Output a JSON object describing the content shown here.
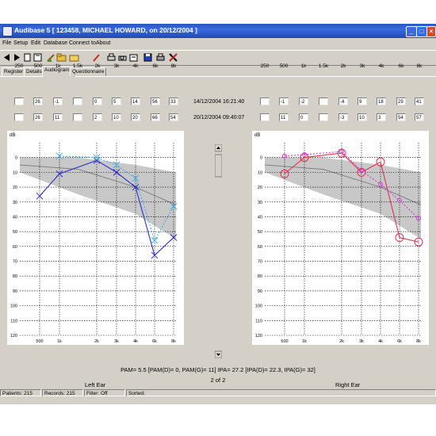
{
  "window": {
    "title": "Audibase 5 [ 123458, MICHAEL HOWARD, on 20/12/2004 ]"
  },
  "menu": [
    "File",
    "Setup",
    "Edit",
    "Database",
    "Connect to",
    "About"
  ],
  "toolbar_icons": [
    "back-icon",
    "forward-icon",
    "page-icon",
    "save-disk-icon",
    "edit-pencil-icon",
    "folder-icon",
    "paint-brush-icon",
    "print-icon",
    "print-preview-icon",
    "disk-icon",
    "printer-icon",
    "tools-icon"
  ],
  "tabs": [
    "Register",
    "Details",
    "Audiograms",
    "Questionnaire"
  ],
  "active_tab": "Audiograms",
  "freq_headers": [
    "250",
    "500",
    "1k",
    "1.5k",
    "2k",
    "3k",
    "4k",
    "6k",
    "8k"
  ],
  "left_table": {
    "row1": [
      "",
      "26",
      "-1",
      "",
      "0",
      "5",
      "14",
      "56",
      "33"
    ],
    "row2": [
      "",
      "26",
      "11",
      "",
      "2",
      "10",
      "20",
      "66",
      "54"
    ]
  },
  "right_table": {
    "row1": [
      "",
      "-1",
      "-2",
      "",
      "-4",
      "9",
      "18",
      "29",
      "41"
    ],
    "row2": [
      "",
      "11",
      "0",
      "",
      "-3",
      "10",
      "3",
      "54",
      "57"
    ]
  },
  "dates": [
    "14/12/2004 16:21:40",
    "20/12/2004 09:40:07"
  ],
  "summary": "PAM= 5.5  [PAM(D)= 0, PAM(G)= 11]   IPA= 27.2  [IPA(D)= 22.3, IPA(G)= 32]",
  "page_indicator": "2 of 2",
  "left_ear_label": "Left Ear",
  "right_ear_label": "Right Ear",
  "status": {
    "patients": "Patients:  215",
    "records": "Records:  215",
    "filter": "Filter: Off",
    "sorted": "Sorted:"
  },
  "chart_data": [
    {
      "type": "line",
      "ylabel": "dB",
      "ylim": [
        -10,
        120
      ],
      "yticks": [
        0,
        10,
        20,
        30,
        40,
        50,
        60,
        70,
        80,
        90,
        100,
        110,
        120
      ],
      "xticks": [
        "500",
        "1k",
        "2k",
        "3k",
        "4k",
        "6k",
        "8k"
      ],
      "series": [
        {
          "color": "#3030c8",
          "style": "solid",
          "marker": "x",
          "x": [
            "500",
            "1k",
            "2k",
            "3k",
            "4k",
            "6k",
            "8k"
          ],
          "values": [
            26,
            11,
            2,
            10,
            20,
            66,
            54
          ]
        },
        {
          "color": "#40b0e0",
          "style": "dashed",
          "marker": "x",
          "x": [
            "1k",
            "2k",
            "3k",
            "4k",
            "6k",
            "8k"
          ],
          "values": [
            -1,
            0,
            5,
            14,
            56,
            33
          ]
        }
      ]
    },
    {
      "type": "line",
      "ylabel": "dB",
      "ylim": [
        -10,
        120
      ],
      "yticks": [
        0,
        10,
        20,
        30,
        40,
        50,
        60,
        70,
        80,
        90,
        100,
        110,
        120
      ],
      "xticks": [
        "500",
        "1k",
        "2k",
        "3k",
        "4k",
        "6k",
        "8k"
      ],
      "series": [
        {
          "color": "#e03050",
          "style": "solid",
          "marker": "o",
          "x": [
            "500",
            "1k",
            "2k",
            "3k",
            "4k",
            "6k",
            "8k"
          ],
          "values": [
            11,
            0,
            -3,
            10,
            3,
            54,
            57
          ]
        },
        {
          "color": "#d040d0",
          "style": "dashed",
          "marker": "o",
          "x": [
            "500",
            "1k",
            "2k",
            "3k",
            "4k",
            "6k",
            "8k"
          ],
          "values": [
            -1,
            -2,
            -4,
            9,
            18,
            29,
            41
          ]
        }
      ]
    }
  ]
}
